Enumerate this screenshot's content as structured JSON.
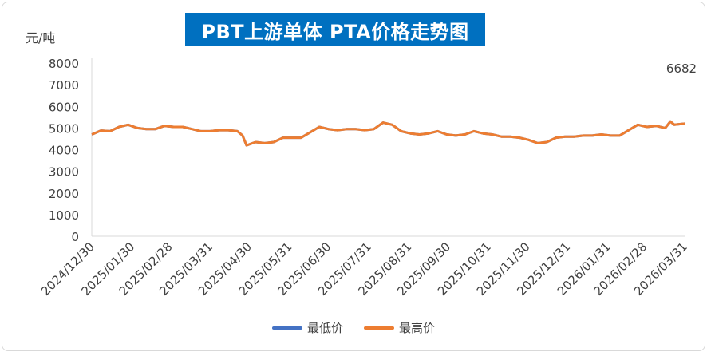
{
  "chart_data": {
    "type": "line",
    "title": "PBT上游单体 PTA价格走势图",
    "ylabel": "元/吨",
    "ylim": [
      0,
      8000
    ],
    "yticks": [
      0,
      1000,
      2000,
      3000,
      4000,
      5000,
      6000,
      7000,
      8000
    ],
    "xlim": [
      "2024/12/30",
      "2026/03/31"
    ],
    "xticks": [
      "2024/12/30",
      "2025/01/30",
      "2025/02/28",
      "2025/03/31",
      "2025/04/30",
      "2025/05/31",
      "2025/06/30",
      "2025/07/31",
      "2025/08/31",
      "2025/09/30",
      "2025/10/31",
      "2025/11/30",
      "2025/12/31",
      "2026/01/31",
      "2026/02/28",
      "2026/03/31"
    ],
    "annotation": "6682",
    "legend_position": "bottom",
    "grid": false,
    "series": [
      {
        "name": "最低价",
        "color": "#4472c4",
        "points": [
          [
            "2024/12/30",
            4700
          ],
          [
            "2025/01/06",
            4880
          ],
          [
            "2025/01/13",
            4850
          ],
          [
            "2025/01/20",
            5050
          ],
          [
            "2025/01/27",
            5150
          ],
          [
            "2025/02/03",
            5000
          ],
          [
            "2025/02/10",
            4950
          ],
          [
            "2025/02/17",
            4950
          ],
          [
            "2025/02/24",
            5100
          ],
          [
            "2025/03/03",
            5050
          ],
          [
            "2025/03/10",
            5050
          ],
          [
            "2025/03/17",
            4950
          ],
          [
            "2025/03/24",
            4850
          ],
          [
            "2025/03/31",
            4850
          ],
          [
            "2025/04/07",
            4900
          ],
          [
            "2025/04/14",
            4900
          ],
          [
            "2025/04/21",
            4850
          ],
          [
            "2025/04/25",
            4650
          ],
          [
            "2025/04/28",
            4200
          ],
          [
            "2025/05/05",
            4350
          ],
          [
            "2025/05/12",
            4300
          ],
          [
            "2025/05/19",
            4350
          ],
          [
            "2025/05/26",
            4550
          ],
          [
            "2025/06/02",
            4550
          ],
          [
            "2025/06/09",
            4550
          ],
          [
            "2025/06/16",
            4800
          ],
          [
            "2025/06/23",
            5050
          ],
          [
            "2025/06/30",
            4950
          ],
          [
            "2025/07/07",
            4900
          ],
          [
            "2025/07/14",
            4950
          ],
          [
            "2025/07/21",
            4950
          ],
          [
            "2025/07/28",
            4900
          ],
          [
            "2025/08/04",
            4950
          ],
          [
            "2025/08/11",
            5250
          ],
          [
            "2025/08/18",
            5150
          ],
          [
            "2025/08/25",
            4850
          ],
          [
            "2025/09/01",
            4750
          ],
          [
            "2025/09/08",
            4700
          ],
          [
            "2025/09/15",
            4750
          ],
          [
            "2025/09/22",
            4850
          ],
          [
            "2025/09/29",
            4700
          ],
          [
            "2025/10/06",
            4650
          ],
          [
            "2025/10/13",
            4700
          ],
          [
            "2025/10/20",
            4850
          ],
          [
            "2025/10/27",
            4750
          ],
          [
            "2025/11/03",
            4700
          ],
          [
            "2025/11/10",
            4600
          ],
          [
            "2025/11/17",
            4600
          ],
          [
            "2025/11/24",
            4550
          ],
          [
            "2025/12/01",
            4450
          ],
          [
            "2025/12/08",
            4300
          ],
          [
            "2025/12/15",
            4350
          ],
          [
            "2025/12/22",
            4550
          ],
          [
            "2025/12/29",
            4600
          ],
          [
            "2026/01/05",
            4600
          ],
          [
            "2026/01/12",
            4650
          ],
          [
            "2026/01/19",
            4650
          ],
          [
            "2026/01/26",
            4700
          ],
          [
            "2026/02/02",
            4650
          ],
          [
            "2026/02/09",
            4650
          ],
          [
            "2026/02/16",
            4900
          ],
          [
            "2026/02/23",
            5150
          ],
          [
            "2026/03/02",
            5050
          ],
          [
            "2026/03/09",
            5100
          ],
          [
            "2026/03/16",
            5000
          ],
          [
            "2026/03/20",
            5300
          ],
          [
            "2026/03/23",
            5150
          ],
          [
            "2026/03/31",
            5200
          ]
        ]
      },
      {
        "name": "最高价",
        "color": "#ed7d31",
        "points": [
          [
            "2024/12/30",
            4700
          ],
          [
            "2025/01/06",
            4880
          ],
          [
            "2025/01/13",
            4850
          ],
          [
            "2025/01/20",
            5050
          ],
          [
            "2025/01/27",
            5150
          ],
          [
            "2025/02/03",
            5000
          ],
          [
            "2025/02/10",
            4950
          ],
          [
            "2025/02/17",
            4950
          ],
          [
            "2025/02/24",
            5100
          ],
          [
            "2025/03/03",
            5050
          ],
          [
            "2025/03/10",
            5050
          ],
          [
            "2025/03/17",
            4950
          ],
          [
            "2025/03/24",
            4850
          ],
          [
            "2025/03/31",
            4850
          ],
          [
            "2025/04/07",
            4900
          ],
          [
            "2025/04/14",
            4900
          ],
          [
            "2025/04/21",
            4850
          ],
          [
            "2025/04/25",
            4650
          ],
          [
            "2025/04/28",
            4200
          ],
          [
            "2025/05/05",
            4350
          ],
          [
            "2025/05/12",
            4300
          ],
          [
            "2025/05/19",
            4350
          ],
          [
            "2025/05/26",
            4550
          ],
          [
            "2025/06/02",
            4550
          ],
          [
            "2025/06/09",
            4550
          ],
          [
            "2025/06/16",
            4800
          ],
          [
            "2025/06/23",
            5050
          ],
          [
            "2025/06/30",
            4950
          ],
          [
            "2025/07/07",
            4900
          ],
          [
            "2025/07/14",
            4950
          ],
          [
            "2025/07/21",
            4950
          ],
          [
            "2025/07/28",
            4900
          ],
          [
            "2025/08/04",
            4950
          ],
          [
            "2025/08/11",
            5250
          ],
          [
            "2025/08/18",
            5150
          ],
          [
            "2025/08/25",
            4850
          ],
          [
            "2025/09/01",
            4750
          ],
          [
            "2025/09/08",
            4700
          ],
          [
            "2025/09/15",
            4750
          ],
          [
            "2025/09/22",
            4850
          ],
          [
            "2025/09/29",
            4700
          ],
          [
            "2025/10/06",
            4650
          ],
          [
            "2025/10/13",
            4700
          ],
          [
            "2025/10/20",
            4850
          ],
          [
            "2025/10/27",
            4750
          ],
          [
            "2025/11/03",
            4700
          ],
          [
            "2025/11/10",
            4600
          ],
          [
            "2025/11/17",
            4600
          ],
          [
            "2025/11/24",
            4550
          ],
          [
            "2025/12/01",
            4450
          ],
          [
            "2025/12/08",
            4300
          ],
          [
            "2025/12/15",
            4350
          ],
          [
            "2025/12/22",
            4550
          ],
          [
            "2025/12/29",
            4600
          ],
          [
            "2026/01/05",
            4600
          ],
          [
            "2026/01/12",
            4650
          ],
          [
            "2026/01/19",
            4650
          ],
          [
            "2026/01/26",
            4700
          ],
          [
            "2026/02/02",
            4650
          ],
          [
            "2026/02/09",
            4650
          ],
          [
            "2026/02/16",
            4900
          ],
          [
            "2026/02/23",
            5150
          ],
          [
            "2026/03/02",
            5050
          ],
          [
            "2026/03/09",
            5100
          ],
          [
            "2026/03/16",
            5000
          ],
          [
            "2026/03/20",
            5300
          ],
          [
            "2026/03/23",
            5150
          ],
          [
            "2026/03/31",
            5200
          ]
        ]
      }
    ]
  }
}
